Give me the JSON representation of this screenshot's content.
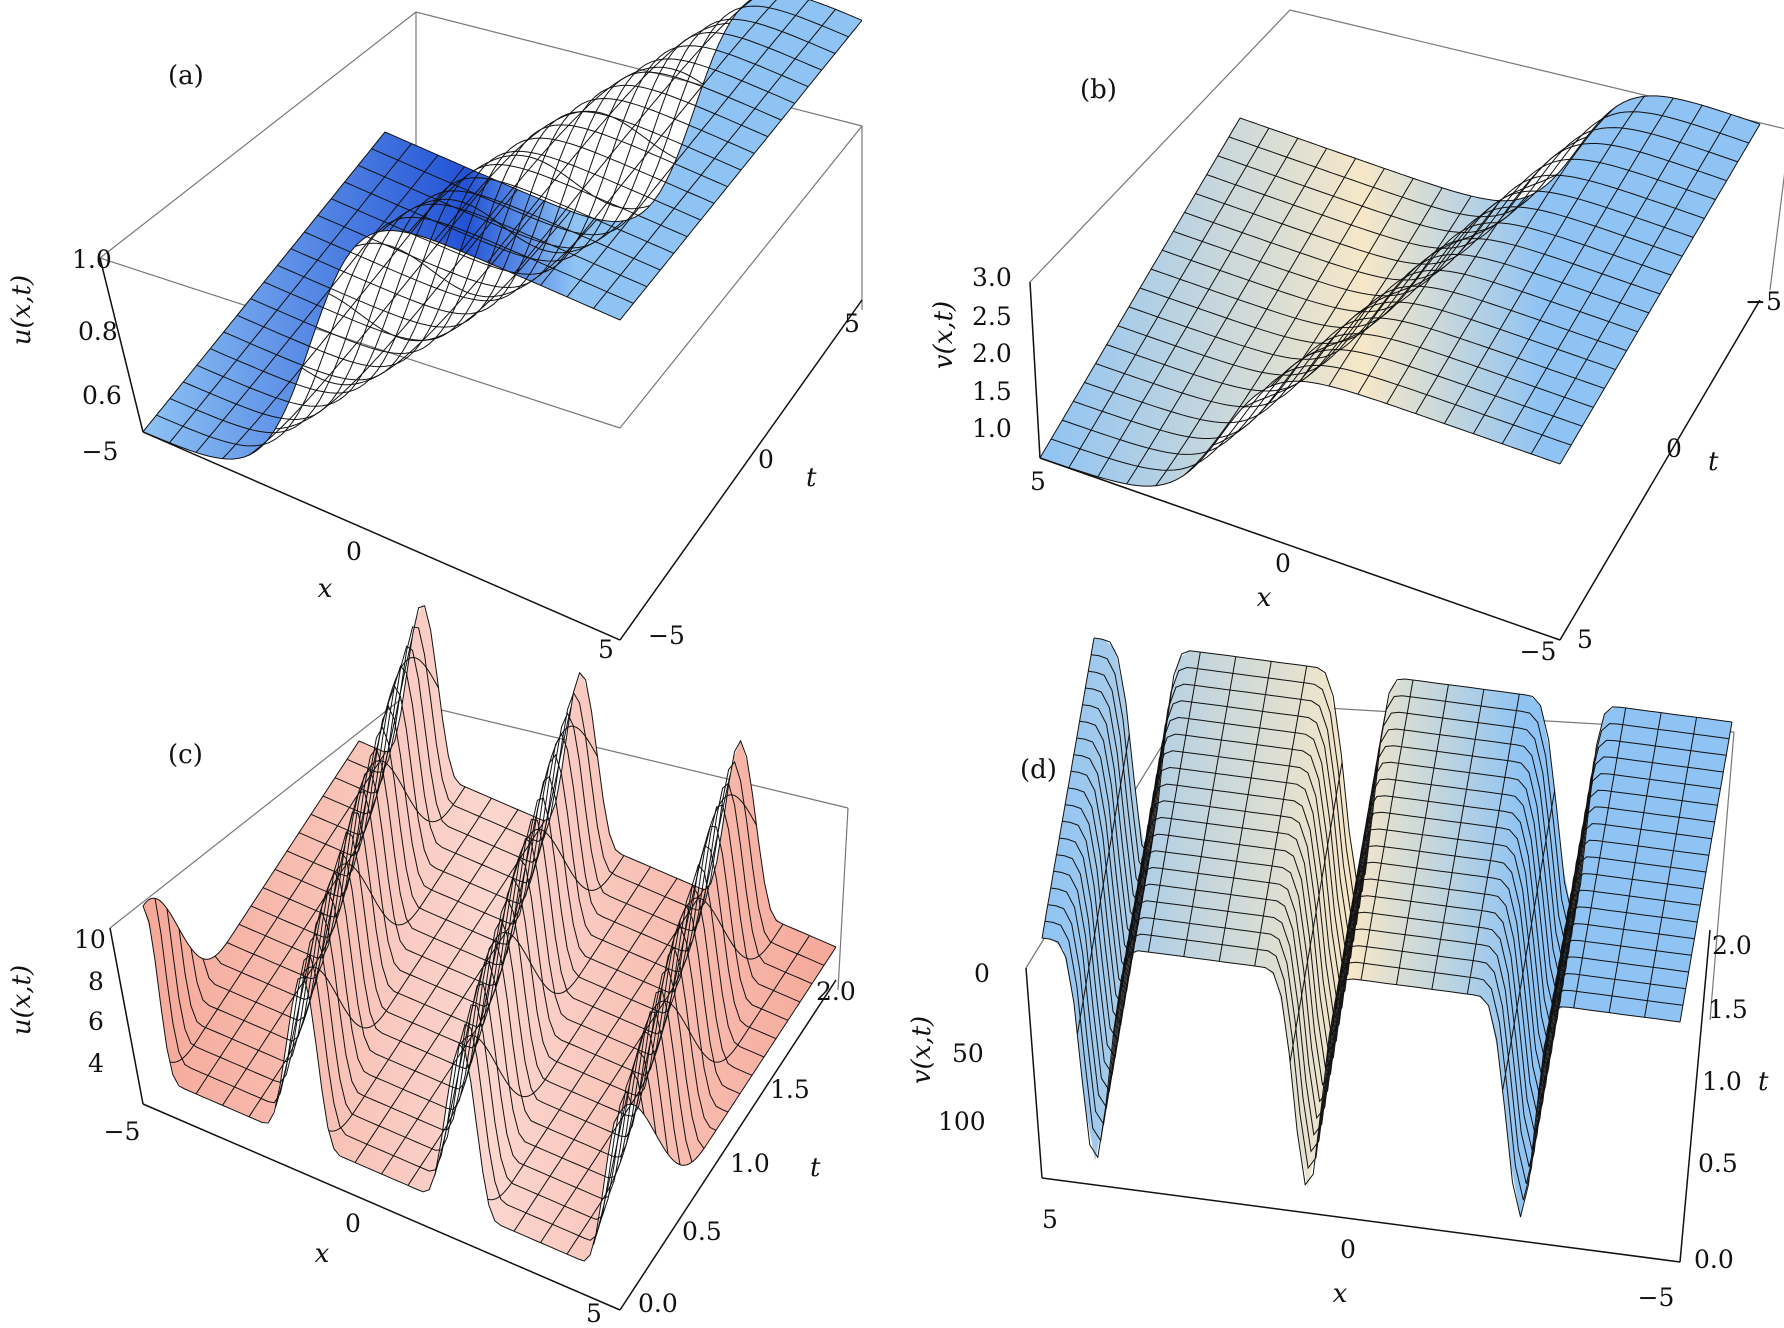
{
  "figure": {
    "panels": [
      {
        "label": "(a)",
        "zlabel": "u(x,t)",
        "xlabel": "x",
        "ylabel": "t",
        "zticks": [
          "1.0",
          "0.8",
          "0.6"
        ],
        "xticks": [
          "−5",
          "0",
          "5"
        ],
        "yticks": [
          "−5",
          "0",
          "5"
        ]
      },
      {
        "label": "(b)",
        "zlabel": "v(x,t)",
        "xlabel": "x",
        "ylabel": "t",
        "zticks": [
          "3.0",
          "2.5",
          "2.0",
          "1.5",
          "1.0"
        ],
        "xticks": [
          "5",
          "0",
          "−5"
        ],
        "yticks": [
          "5",
          "0",
          "−5"
        ]
      },
      {
        "label": "(c)",
        "zlabel": "u(x,t)",
        "xlabel": "x",
        "ylabel": "t",
        "zticks": [
          "10",
          "8",
          "6",
          "4"
        ],
        "xticks": [
          "−5",
          "0",
          "5"
        ],
        "yticks": [
          "0.0",
          "0.5",
          "1.0",
          "1.5",
          "2.0"
        ]
      },
      {
        "label": "(d)",
        "zlabel": "v(x,t)",
        "xlabel": "x",
        "ylabel": "t",
        "zticks": [
          "0",
          "50",
          "100"
        ],
        "xticks": [
          "5",
          "0",
          "−5"
        ],
        "yticks": [
          "0.0",
          "0.5",
          "1.0",
          "1.5",
          "2.0"
        ]
      }
    ]
  },
  "chart_data": [
    {
      "type": "surface",
      "panel": "(a)",
      "zlabel": "u(x,t)",
      "xlabel": "x",
      "ylabel": "t",
      "xlim": [
        -5,
        5
      ],
      "ylim": [
        -5,
        5
      ],
      "zlim": [
        0.5,
        1.0
      ],
      "shape": "kink",
      "colormap": "blue",
      "low_value": 0.5,
      "high_value": 1.0
    },
    {
      "type": "surface",
      "panel": "(b)",
      "zlabel": "v(x,t)",
      "xlabel": "x",
      "ylabel": "t",
      "xlim": [
        -5,
        5
      ],
      "ylim": [
        -5,
        5
      ],
      "zlim": [
        0.8,
        3.0
      ],
      "shape": "kink",
      "colormap": "blue-cream",
      "low_value": 0.8,
      "high_value": 3.0
    },
    {
      "type": "surface",
      "panel": "(c)",
      "zlabel": "u(x,t)",
      "xlabel": "x",
      "ylabel": "t",
      "xlim": [
        -5,
        5
      ],
      "ylim": [
        0,
        2
      ],
      "zlim": [
        3,
        10
      ],
      "shape": "periodic-peaks",
      "colormap": "salmon",
      "peaks_along_x": 3
    },
    {
      "type": "surface",
      "panel": "(d)",
      "zlabel": "v(x,t)",
      "xlabel": "x",
      "ylabel": "t",
      "xlim": [
        -5,
        5
      ],
      "ylim": [
        0,
        2
      ],
      "zlim": [
        0,
        100
      ],
      "shape": "periodic-dips",
      "colormap": "blue-cream",
      "dips_along_x": 3
    }
  ],
  "colors": {
    "blue_light": "#8ec3f4",
    "blue_dark": "#2353d6",
    "cream": "#f6e7c8",
    "salmon": "#f5a898",
    "salmon_dark": "#d6382c",
    "grid": "#111111",
    "box": "#666666"
  }
}
